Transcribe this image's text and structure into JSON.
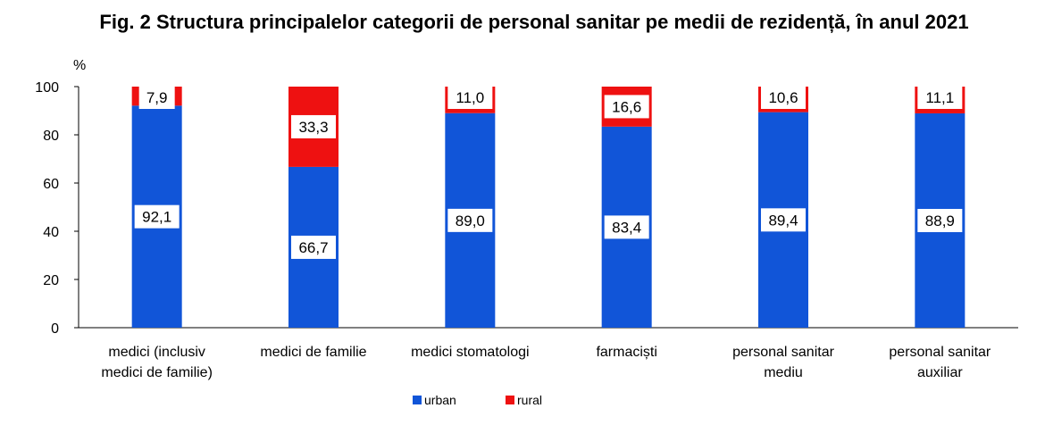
{
  "chart_data": {
    "type": "bar",
    "stacked": true,
    "title": "Fig. 2 Structura principalelor categorii de personal sanitar pe medii de rezidență, în anul 2021",
    "ylabel": "%",
    "ylim": [
      0,
      100
    ],
    "yticks": [
      "0",
      "20",
      "40",
      "60",
      "80",
      "100"
    ],
    "grid": false,
    "legend_position": "bottom",
    "categories": [
      [
        "medici (inclusiv",
        "medici de familie)"
      ],
      [
        "medici de familie"
      ],
      [
        "medici stomatologi"
      ],
      [
        "farmaciști"
      ],
      [
        "personal sanitar",
        "mediu"
      ],
      [
        "personal sanitar",
        "auxiliar"
      ]
    ],
    "series": [
      {
        "name": "urban",
        "color": "#1155d8",
        "values": [
          92.1,
          66.7,
          89.0,
          83.4,
          89.4,
          88.9
        ],
        "labels": [
          "92,1",
          "66,7",
          "89,0",
          "83,4",
          "89,4",
          "88,9"
        ]
      },
      {
        "name": "rural",
        "color": "#ee1111",
        "values": [
          7.9,
          33.3,
          11.0,
          16.6,
          10.6,
          11.1
        ],
        "labels": [
          "7,9",
          "33,3",
          "11,0",
          "16,6",
          "10,6",
          "11,1"
        ]
      }
    ]
  }
}
